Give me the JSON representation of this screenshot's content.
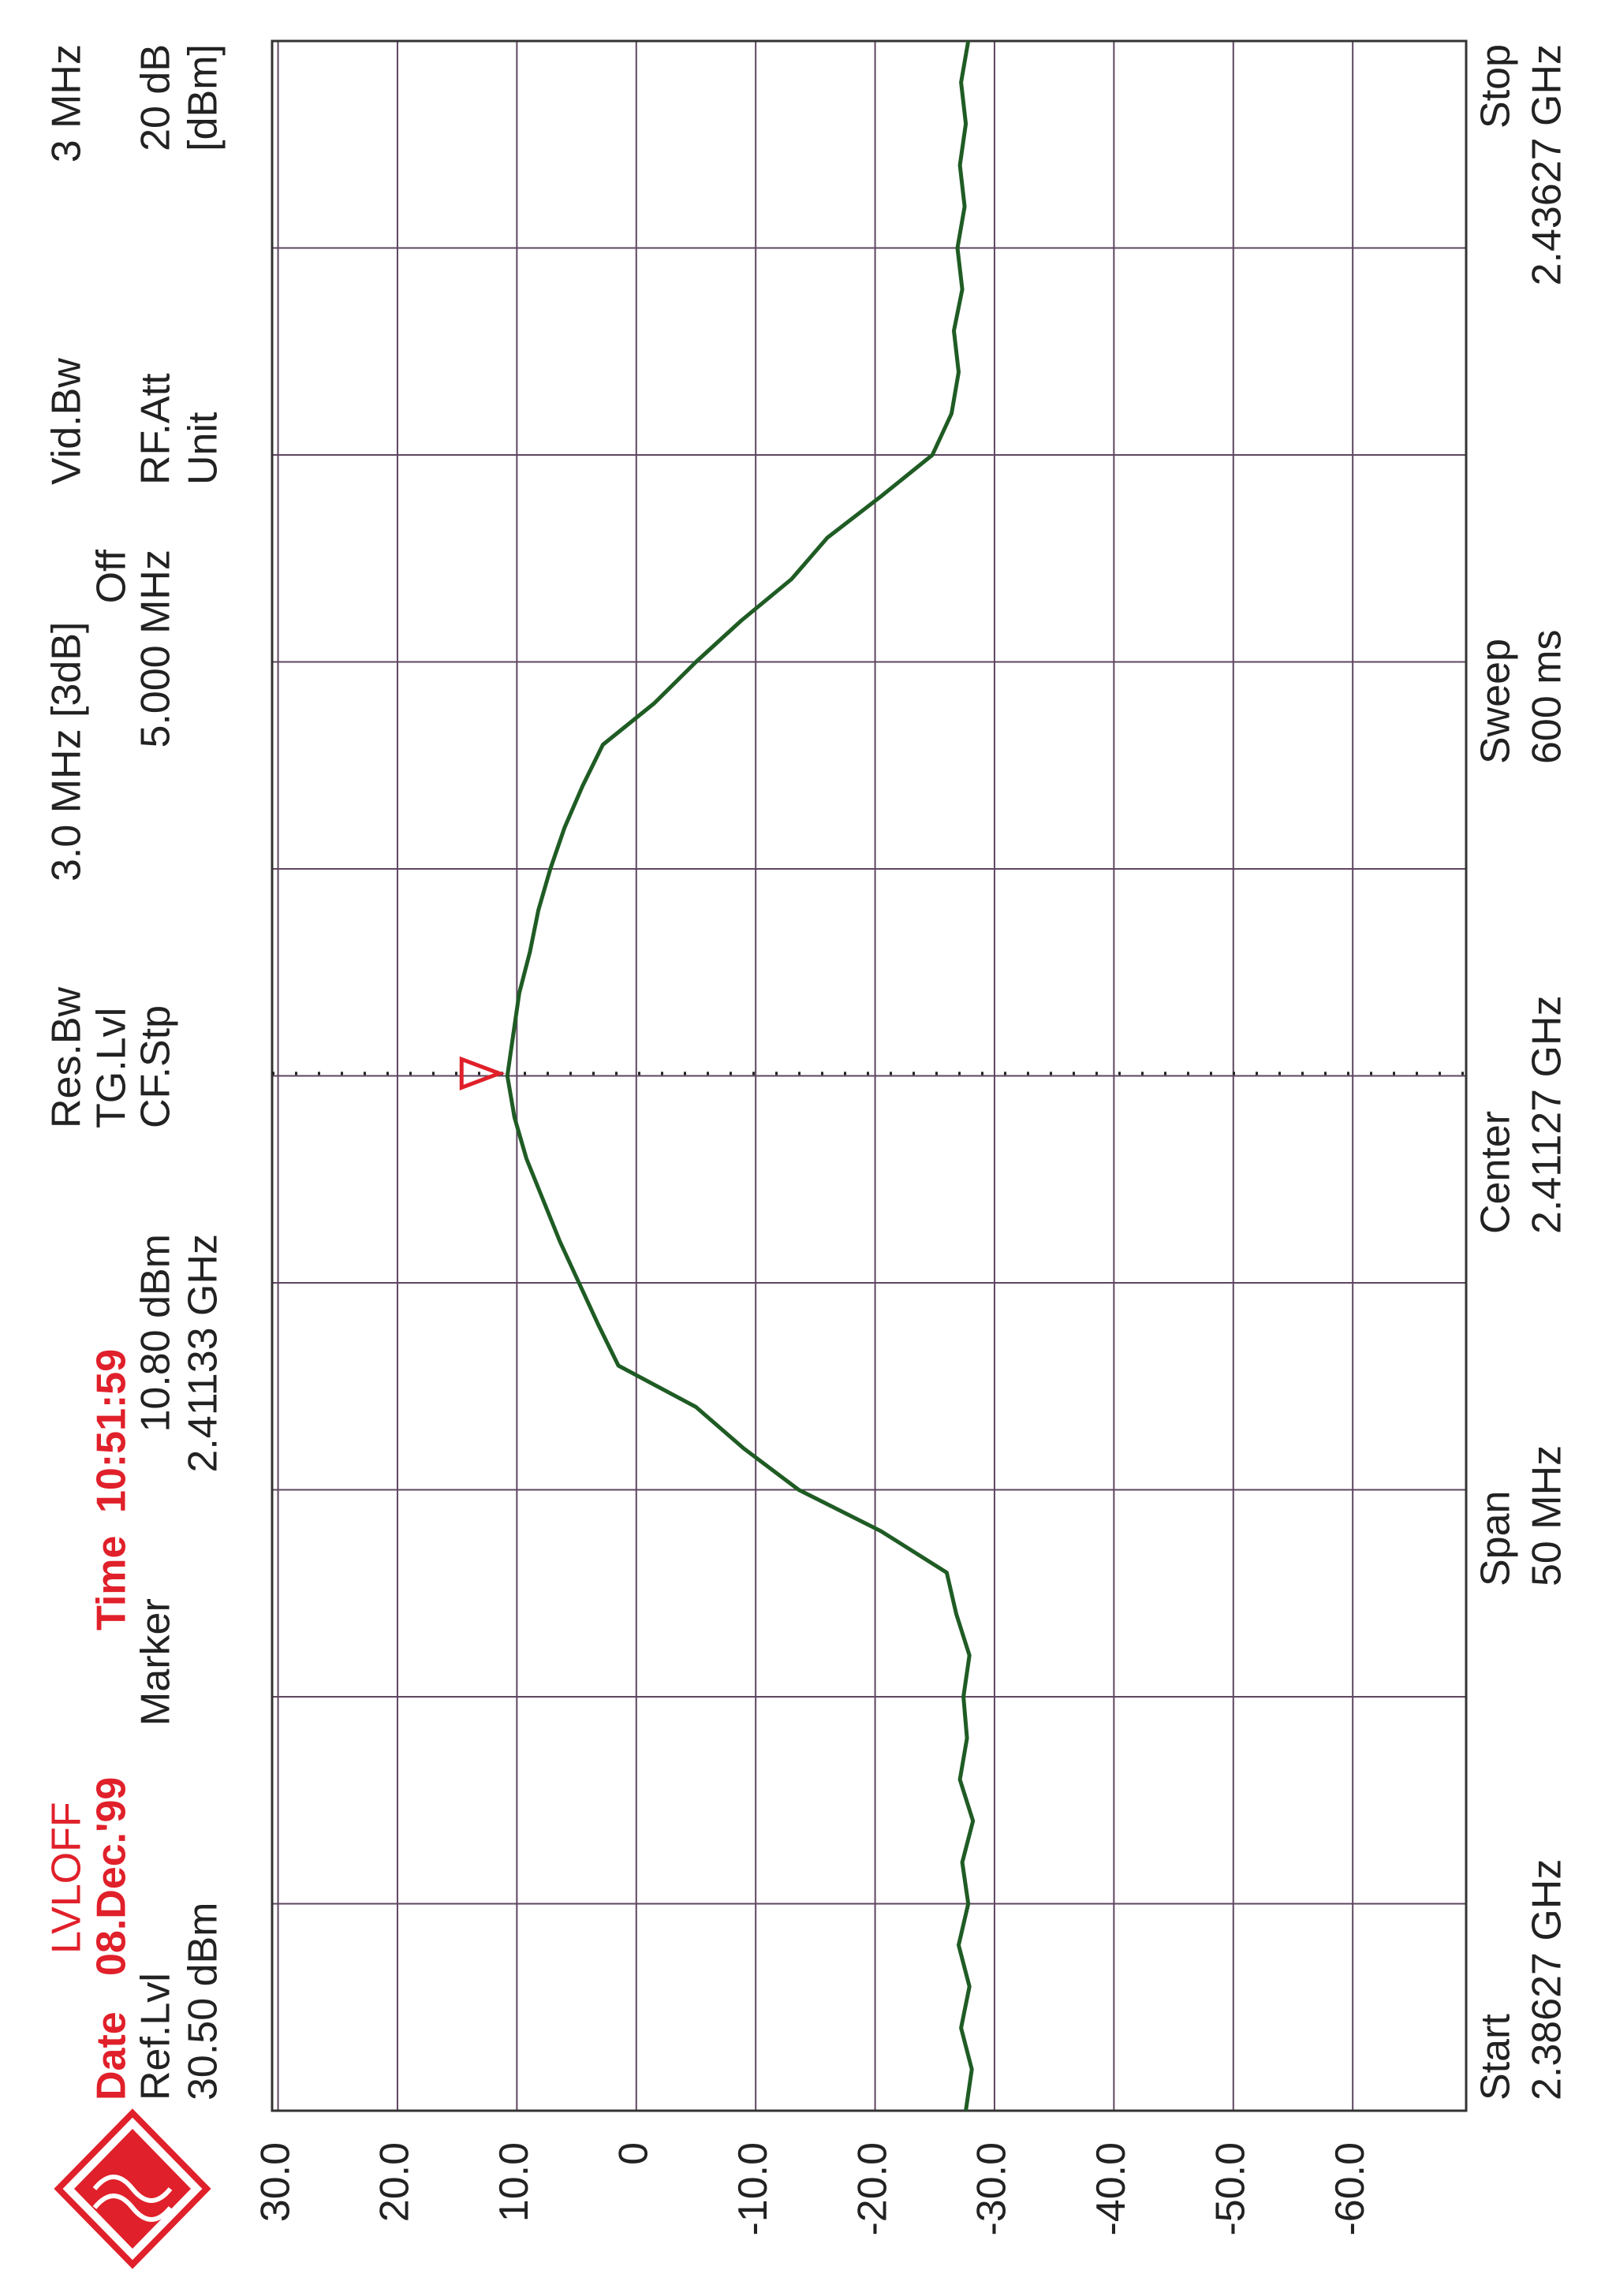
{
  "chart_data": {
    "type": "line",
    "header": {
      "level_mode": "LVLOFF",
      "date_label": "Date",
      "date": "08.Dec.'99",
      "time_label": "Time",
      "time": "10:51:59",
      "ref_level_label": "Ref.Lvl",
      "ref_level": "30.50 dBm",
      "marker_label": "Marker",
      "res_bw_label": "Res.Bw",
      "res_bw": "3.0 MHz [3dB]",
      "tg_level_label": "TG.Lvl",
      "tg_level": "Off",
      "cf_step_label": "CF.Stp",
      "cf_step": "5.000 MHz",
      "vid_bw_label": "Vid.Bw",
      "vid_bw": "3 MHz",
      "rf_att_label": "RF.Att",
      "rf_att": "20 dB",
      "unit_label": "Unit",
      "unit": "[dBm]"
    },
    "footer": {
      "start_label": "Start",
      "start": "2.38627 GHz",
      "span_label": "Span",
      "span": "50 MHz",
      "center_label": "Center",
      "center": "2.41127 GHz",
      "sweep_label": "Sweep",
      "sweep": "600 ms",
      "stop_label": "Stop",
      "stop": "2.43627 GHz"
    },
    "marker": {
      "level": 10.8,
      "level_label": "10.80 dBm",
      "freq": 2.41133,
      "freq_label": "2.41133 GHz"
    },
    "x": [
      2.38627,
      2.38727,
      2.38827,
      2.38927,
      2.39027,
      2.39127,
      2.39227,
      2.39327,
      2.39427,
      2.39527,
      2.39627,
      2.39727,
      2.39827,
      2.39927,
      2.40027,
      2.40127,
      2.40227,
      2.40327,
      2.40427,
      2.40527,
      2.40627,
      2.40727,
      2.40827,
      2.40927,
      2.41027,
      2.41127,
      2.41227,
      2.41327,
      2.41427,
      2.41527,
      2.41627,
      2.41727,
      2.41827,
      2.41927,
      2.42027,
      2.42127,
      2.42227,
      2.42327,
      2.42427,
      2.42527,
      2.42627,
      2.42727,
      2.42827,
      2.42927,
      2.43027,
      2.43127,
      2.43227,
      2.43327,
      2.43427,
      2.43527,
      2.43627
    ],
    "series": [
      {
        "color": "#1f5c24",
        "values": [
          -27.6,
          -28.1,
          -27.2,
          -27.9,
          -27.0,
          -27.8,
          -27.3,
          -28.2,
          -27.1,
          -27.7,
          -27.4,
          -27.9,
          -26.8,
          -26.0,
          -20.5,
          -13.6,
          -9.0,
          -5.0,
          1.5,
          3.2,
          4.8,
          6.4,
          7.8,
          9.2,
          10.2,
          10.8,
          10.3,
          9.8,
          8.9,
          8.2,
          7.2,
          6.0,
          4.5,
          2.8,
          -1.5,
          -5.0,
          -8.8,
          -13.0,
          -16.0,
          -20.5,
          -24.8,
          -26.4,
          -27.0,
          -26.6,
          -27.3,
          -26.9,
          -27.5,
          -27.1,
          -27.6,
          -27.2,
          -27.8
        ]
      }
    ],
    "xlim": [
      2.38627,
      2.43627
    ],
    "ylim": [
      -69.5,
      30.5
    ],
    "xticks": [
      2.38627,
      2.39127,
      2.39627,
      2.40127,
      2.40627,
      2.41127,
      2.41627,
      2.42127,
      2.42627,
      2.43127,
      2.43627
    ],
    "yticks": [
      {
        "value": 30,
        "label": "30.0"
      },
      {
        "value": 20,
        "label": "20.0"
      },
      {
        "value": 10,
        "label": "10.0"
      },
      0,
      {
        "value": -10,
        "label": "-10.0"
      },
      {
        "value": -20,
        "label": "-20.0"
      },
      {
        "value": -30,
        "label": "-30.0"
      },
      {
        "value": -40,
        "label": "-40.0"
      },
      {
        "value": -50,
        "label": "-50.0"
      },
      {
        "value": -60,
        "label": "-60.0"
      }
    ],
    "grid": true
  }
}
